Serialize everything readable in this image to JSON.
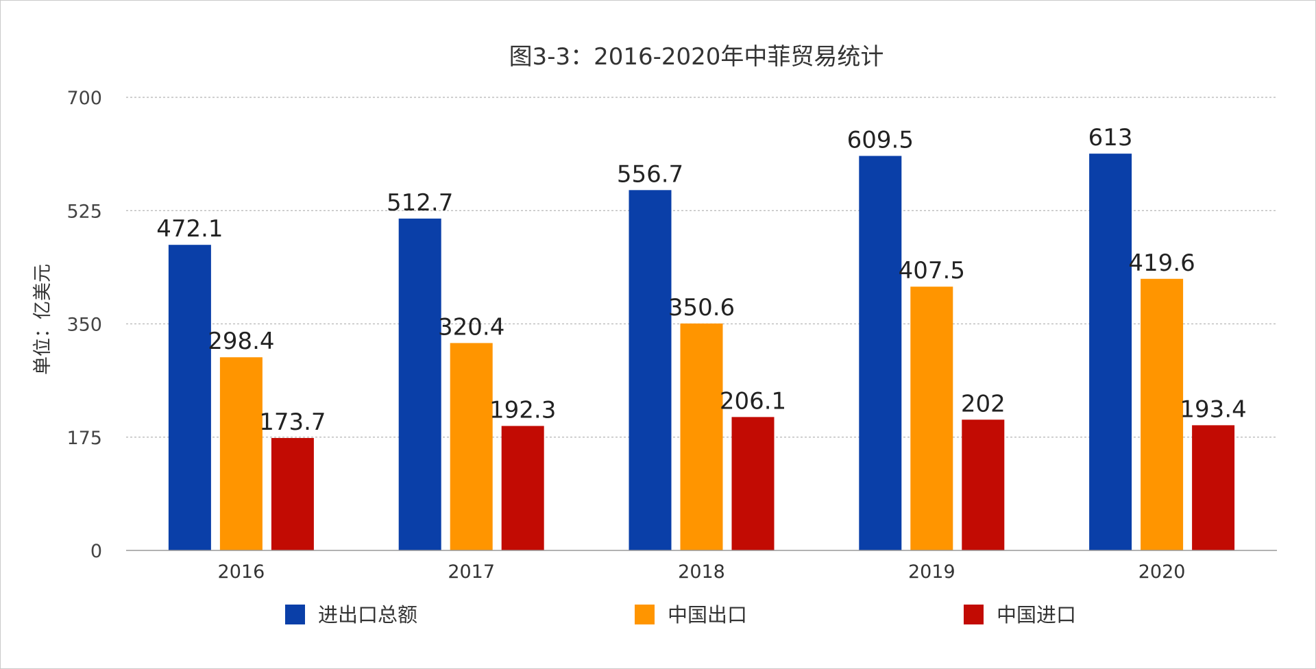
{
  "chart_data": {
    "type": "bar",
    "title": "图3-3：2016-2020年中菲贸易统计",
    "xlabel": "",
    "ylabel": "单位：亿美元",
    "ylim": [
      0,
      700
    ],
    "yticks": [
      "0",
      "175",
      "350",
      "525",
      "700"
    ],
    "categories": [
      "2016",
      "2017",
      "2018",
      "2019",
      "2020"
    ],
    "series": [
      {
        "name": "进出口总额",
        "color": "#0a3fa8",
        "values": [
          472.1,
          512.7,
          556.7,
          609.5,
          613
        ]
      },
      {
        "name": "中国出口",
        "color": "#ff9500",
        "values": [
          298.4,
          320.4,
          350.6,
          407.5,
          419.6
        ]
      },
      {
        "name": "中国进口",
        "color": "#c20b03",
        "values": [
          173.7,
          192.3,
          206.1,
          202,
          193.4
        ]
      }
    ],
    "grid": true,
    "legend_position": "bottom"
  }
}
